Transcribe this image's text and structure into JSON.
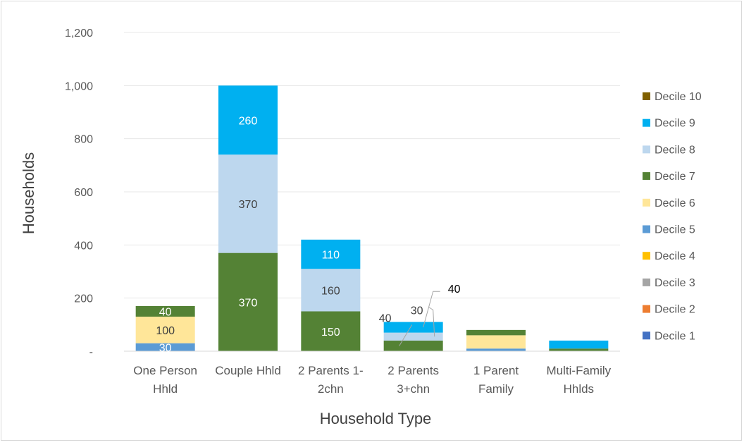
{
  "chart_data": {
    "type": "bar",
    "stacked": true,
    "title": "",
    "xlabel": "Household Type",
    "ylabel": "Households",
    "ylim": [
      0,
      1200
    ],
    "yticks": [
      0,
      200,
      400,
      600,
      800,
      1000,
      1200
    ],
    "ytick_labels": [
      "-",
      "200",
      "400",
      "600",
      "800",
      "1,000",
      "1,200"
    ],
    "grid": true,
    "legend_position": "right",
    "categories": [
      [
        "One Person",
        "Hhld"
      ],
      [
        "Couple Hhld"
      ],
      [
        "2 Parents 1-",
        "2chn"
      ],
      [
        "2 Parents",
        "3+chn"
      ],
      [
        "1 Parent",
        "Family"
      ],
      [
        "Multi-Family",
        "Hhlds"
      ]
    ],
    "series": [
      {
        "name": "Decile 1",
        "color": "#4472c4",
        "values": [
          0,
          0,
          0,
          0,
          0,
          0
        ],
        "labels": [
          null,
          null,
          null,
          null,
          null,
          null
        ]
      },
      {
        "name": "Decile 2",
        "color": "#ed7d31",
        "values": [
          0,
          0,
          0,
          0,
          0,
          0
        ],
        "labels": [
          null,
          null,
          null,
          null,
          null,
          null
        ]
      },
      {
        "name": "Decile 3",
        "color": "#a5a5a5",
        "values": [
          0,
          0,
          0,
          0,
          0,
          0
        ],
        "labels": [
          null,
          null,
          null,
          null,
          null,
          null
        ]
      },
      {
        "name": "Decile 4",
        "color": "#ffc000",
        "values": [
          0,
          0,
          0,
          0,
          0,
          0
        ],
        "labels": [
          null,
          null,
          null,
          null,
          null,
          null
        ]
      },
      {
        "name": "Decile 5",
        "color": "#5b9bd5",
        "values": [
          30,
          0,
          0,
          0,
          10,
          0
        ],
        "labels": [
          "30",
          null,
          null,
          null,
          null,
          null
        ]
      },
      {
        "name": "Decile 6",
        "color": "#ffe699",
        "values": [
          100,
          0,
          0,
          0,
          50,
          0
        ],
        "labels": [
          "100",
          null,
          null,
          null,
          null,
          null
        ]
      },
      {
        "name": "Decile 7",
        "color": "#548235",
        "values": [
          40,
          370,
          150,
          40,
          20,
          10
        ],
        "labels": [
          "40",
          "370",
          "150",
          "40",
          null,
          null
        ]
      },
      {
        "name": "Decile 8",
        "color": "#bdd7ee",
        "values": [
          0,
          370,
          160,
          30,
          0,
          0
        ],
        "labels": [
          null,
          "370",
          "160",
          "30",
          null,
          null
        ]
      },
      {
        "name": "Decile 9",
        "color": "#00b0f0",
        "values": [
          0,
          260,
          110,
          40,
          0,
          30
        ],
        "labels": [
          null,
          "260",
          "110",
          "40",
          null,
          null
        ]
      },
      {
        "name": "Decile 10",
        "color": "#806000",
        "values": [
          0,
          0,
          0,
          0,
          0,
          0
        ],
        "labels": [
          null,
          null,
          null,
          null,
          null,
          null
        ]
      }
    ]
  }
}
